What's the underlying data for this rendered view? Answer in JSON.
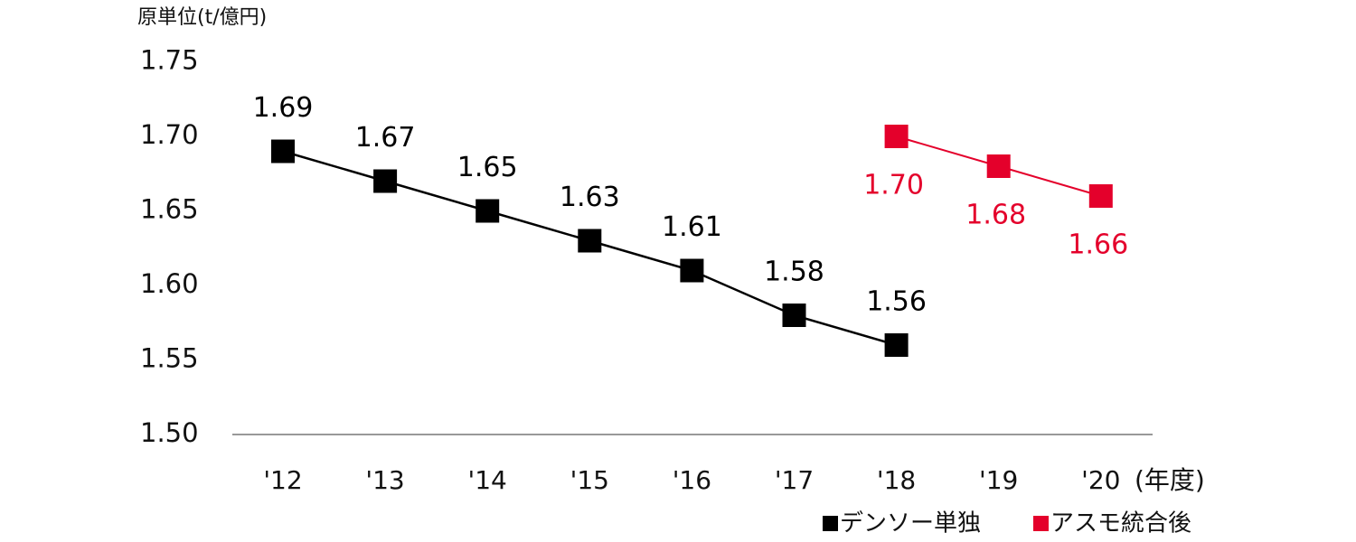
{
  "chart_data": {
    "type": "line",
    "y_label": "原単位(t/億円)",
    "x_label": "(年度)",
    "categories": [
      "'12",
      "'13",
      "'14",
      "'15",
      "'16",
      "'17",
      "'18",
      "'19",
      "'20"
    ],
    "series": [
      {
        "name": "デンソー単独",
        "color": "#000000",
        "label_position": "above",
        "values": [
          1.69,
          1.67,
          1.65,
          1.63,
          1.61,
          1.58,
          1.56,
          null,
          null
        ]
      },
      {
        "name": "アスモ統合後",
        "color": "#e4002b",
        "label_position": "below",
        "values": [
          null,
          null,
          null,
          null,
          null,
          null,
          1.7,
          1.68,
          1.66
        ],
        "value_labels": [
          null,
          null,
          null,
          null,
          null,
          null,
          "1.70",
          "1.68",
          "1.66"
        ]
      }
    ],
    "ylim": [
      1.5,
      1.75
    ],
    "yticks": [
      {
        "value": 1.5,
        "label": "1.50"
      },
      {
        "value": 1.55,
        "label": "1.55"
      },
      {
        "value": 1.6,
        "label": "1.60"
      },
      {
        "value": 1.65,
        "label": "1.65"
      },
      {
        "value": 1.7,
        "label": "1.70"
      },
      {
        "value": 1.75,
        "label": "1.75"
      }
    ],
    "grid": false
  }
}
